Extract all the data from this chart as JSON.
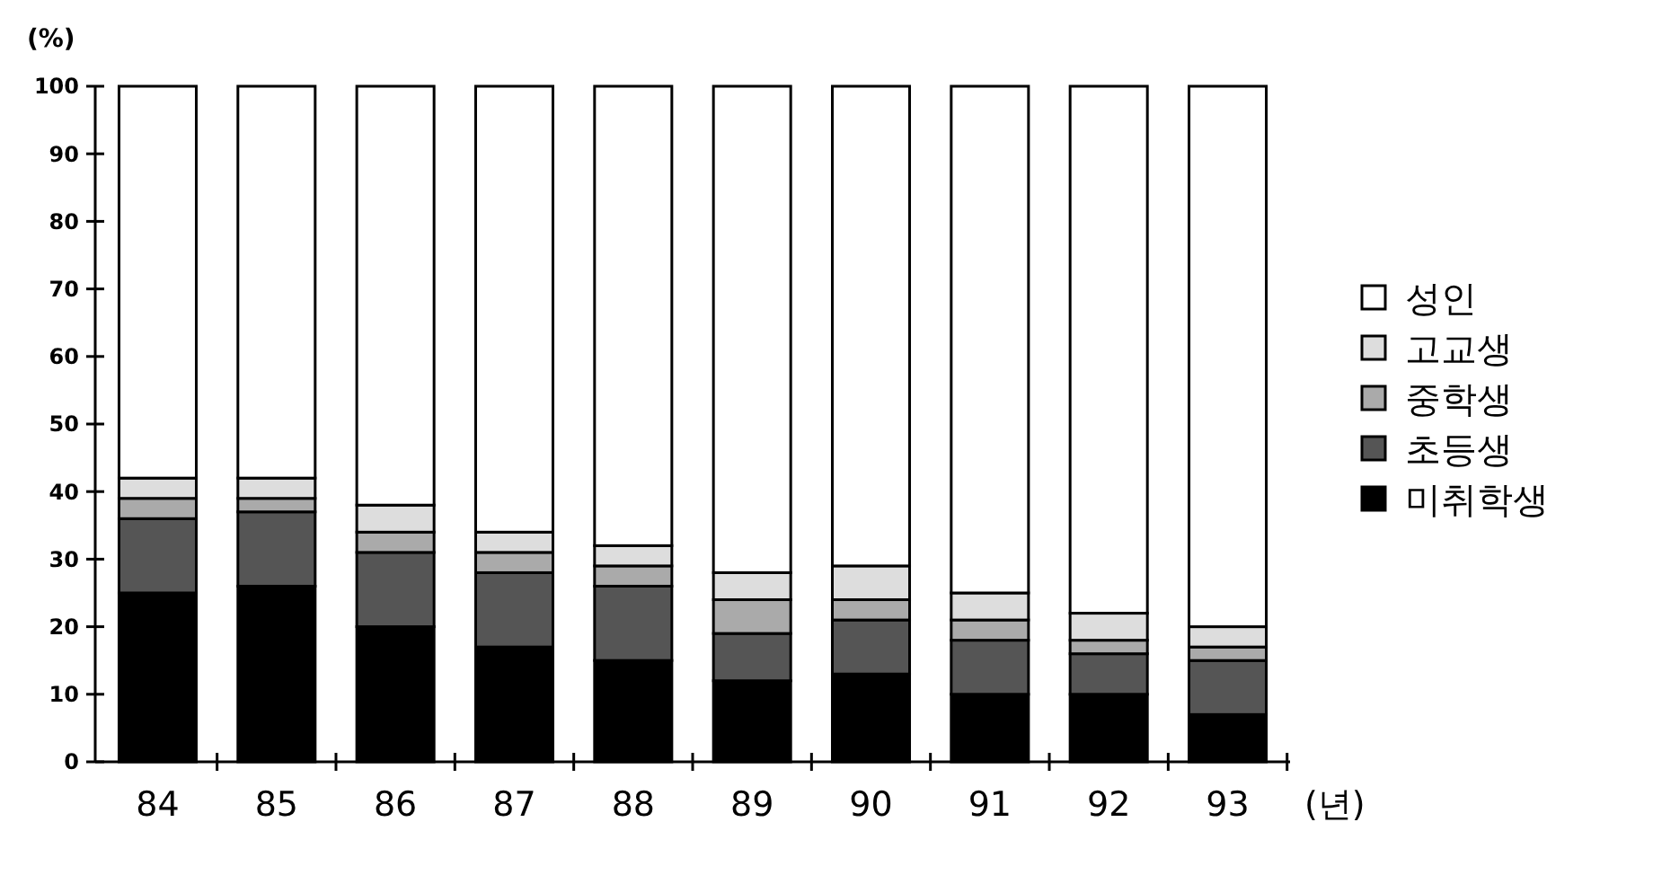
{
  "chart_data": {
    "type": "bar",
    "stacked": true,
    "ylabel": "(%)",
    "xlabel": "(년)",
    "categories": [
      "84",
      "85",
      "86",
      "87",
      "88",
      "89",
      "90",
      "91",
      "92",
      "93"
    ],
    "series": [
      {
        "name": "미취학생",
        "color": "#000000",
        "values": [
          25,
          26,
          20,
          17,
          15,
          12,
          13,
          10,
          10,
          7
        ]
      },
      {
        "name": "초등생",
        "color": "#555555",
        "values": [
          11,
          11,
          11,
          11,
          11,
          7,
          8,
          8,
          6,
          8
        ]
      },
      {
        "name": "중학생",
        "color": "#aaaaaa",
        "values": [
          3,
          2,
          3,
          3,
          3,
          5,
          3,
          3,
          2,
          2
        ]
      },
      {
        "name": "고교생",
        "color": "#dddddd",
        "values": [
          3,
          3,
          4,
          3,
          3,
          4,
          5,
          4,
          4,
          3
        ]
      },
      {
        "name": "성인",
        "color": "#ffffff",
        "values": [
          58,
          58,
          62,
          66,
          68,
          72,
          71,
          75,
          78,
          80
        ]
      }
    ],
    "ylim": [
      0,
      100
    ],
    "yticks": [
      0,
      10,
      20,
      30,
      40,
      50,
      60,
      70,
      80,
      90,
      100
    ],
    "grid": false,
    "legend": "right"
  }
}
